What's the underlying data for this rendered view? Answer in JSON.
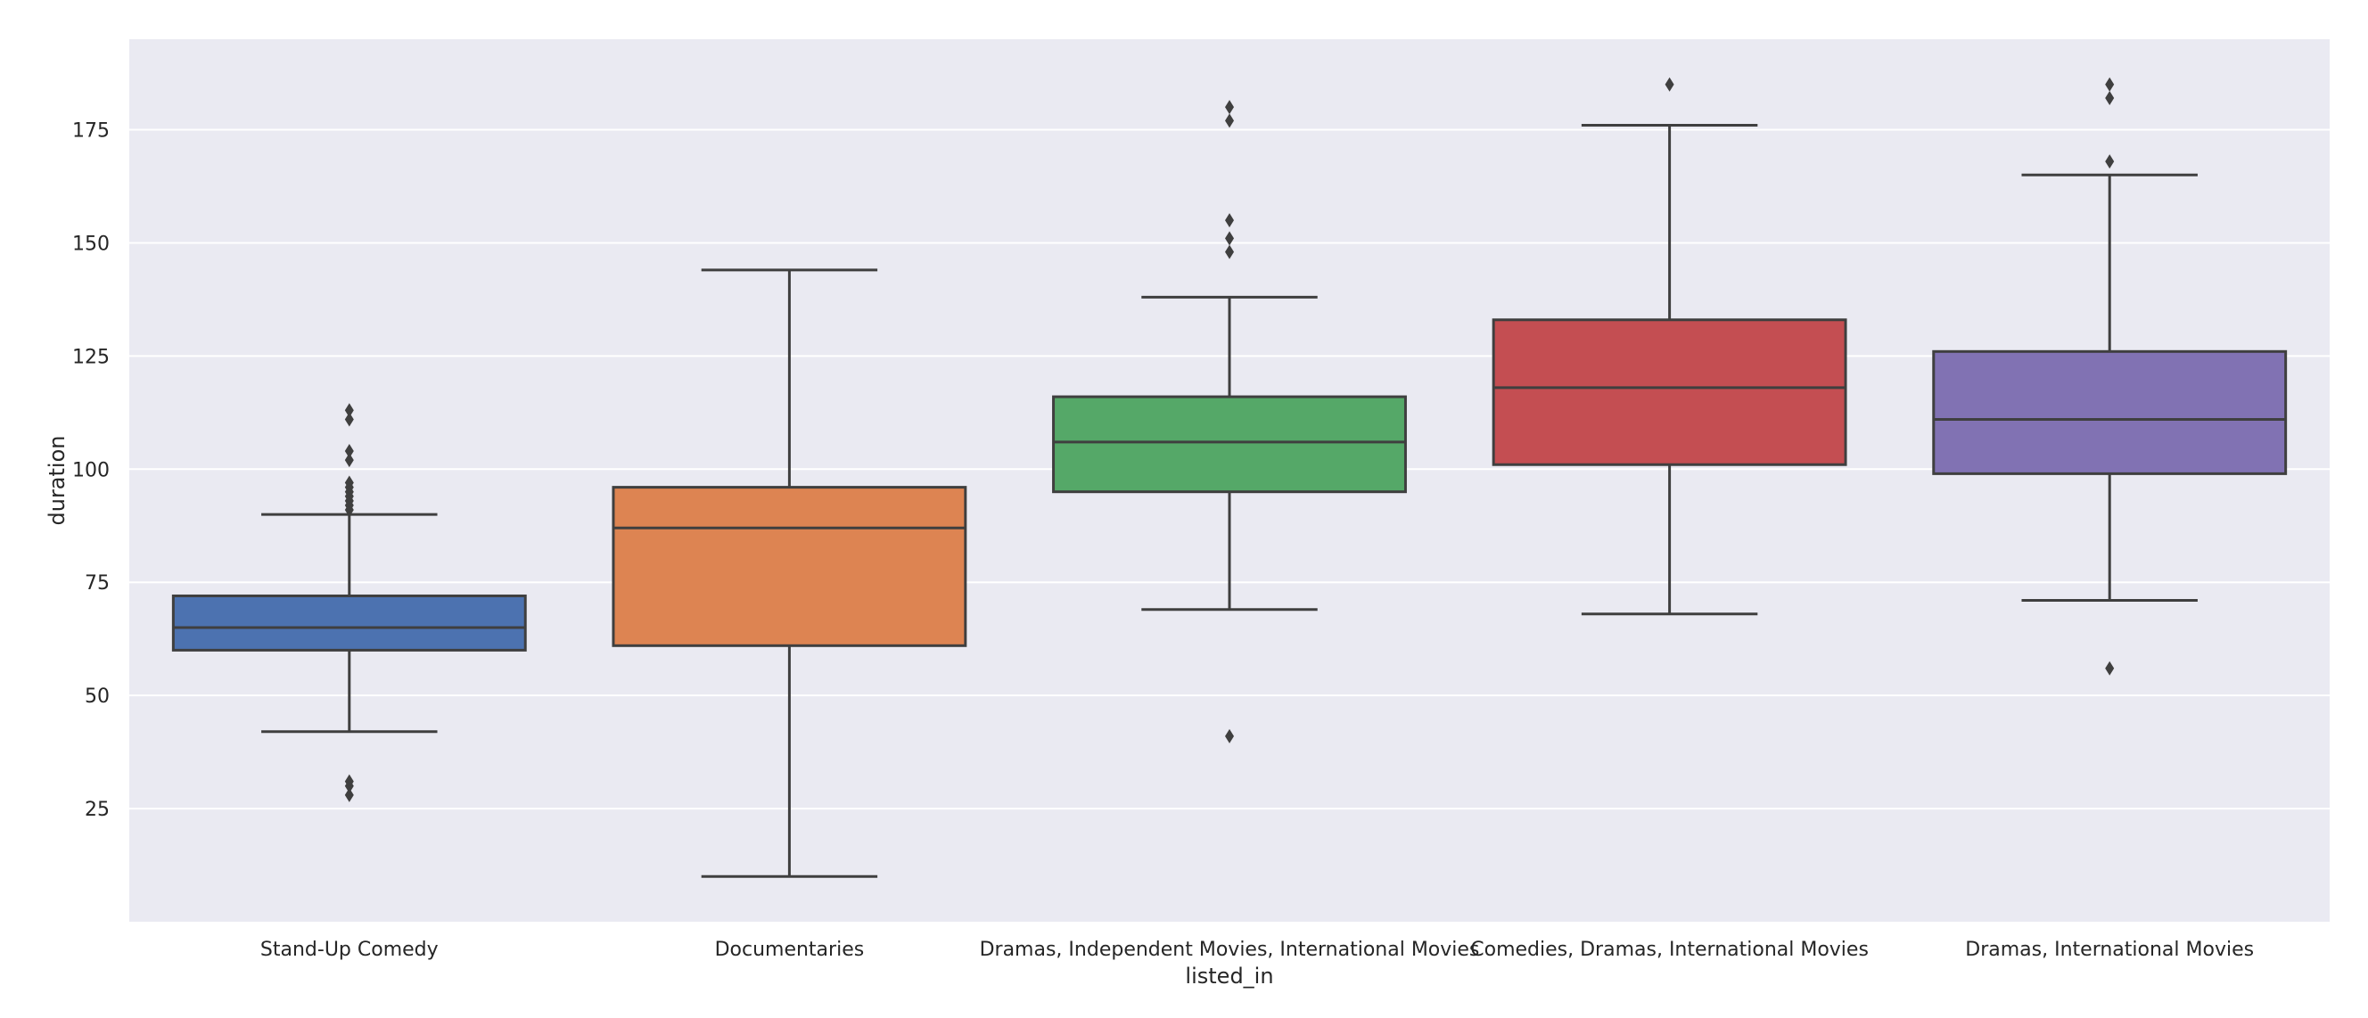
{
  "chart_data": {
    "type": "box",
    "xlabel": "listed_in",
    "ylabel": "duration",
    "ylim": [
      0,
      195
    ],
    "yticks": [
      25,
      50,
      75,
      100,
      125,
      150,
      175
    ],
    "grid": true,
    "background": "#EAEAF2",
    "grid_color": "#FFFFFF",
    "line_color": "#3F3F3F",
    "categories": [
      "Stand-Up Comedy",
      "Documentaries",
      "Dramas, Independent Movies, International Movies",
      "Comedies, Dramas, International Movies",
      "Dramas, International Movies"
    ],
    "boxes": [
      {
        "category": "Stand-Up Comedy",
        "color": "#4C72B0",
        "whisker_low": 42,
        "q1": 60,
        "median": 65,
        "q3": 72,
        "whisker_high": 90,
        "outliers": [
          28,
          30,
          31,
          91,
          92,
          93,
          94,
          95,
          96,
          97,
          102,
          104,
          111,
          113
        ]
      },
      {
        "category": "Documentaries",
        "color": "#DD8452",
        "whisker_low": 10,
        "q1": 61,
        "median": 87,
        "q3": 96,
        "whisker_high": 144,
        "outliers": []
      },
      {
        "category": "Dramas, Independent Movies, International Movies",
        "color": "#55A868",
        "whisker_low": 69,
        "q1": 95,
        "median": 106,
        "q3": 116,
        "whisker_high": 138,
        "outliers": [
          41,
          148,
          151,
          155,
          177,
          180
        ]
      },
      {
        "category": "Comedies, Dramas, International Movies",
        "color": "#C44E52",
        "whisker_low": 68,
        "q1": 101,
        "median": 118,
        "q3": 133,
        "whisker_high": 176,
        "outliers": [
          185
        ]
      },
      {
        "category": "Dramas, International Movies",
        "color": "#8172B3",
        "whisker_low": 71,
        "q1": 99,
        "median": 111,
        "q3": 126,
        "whisker_high": 165,
        "outliers": [
          56,
          168,
          182,
          185
        ]
      }
    ]
  }
}
